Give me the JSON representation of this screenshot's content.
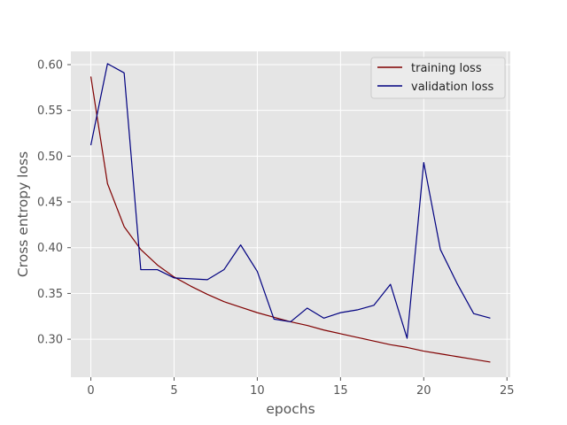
{
  "chart_data": {
    "type": "line",
    "xlabel": "epochs",
    "ylabel": "Cross entropy loss",
    "xlim": [
      -1.2,
      25.2
    ],
    "ylim": [
      0.2585,
      0.6145
    ],
    "x_ticks": [
      0,
      5,
      10,
      15,
      20,
      25
    ],
    "y_ticks": [
      0.3,
      0.35,
      0.4,
      0.45,
      0.5,
      0.55,
      0.6
    ],
    "x_tick_labels": [
      "0",
      "5",
      "10",
      "15",
      "20",
      "25"
    ],
    "y_tick_labels": [
      "0.30",
      "0.35",
      "0.40",
      "0.45",
      "0.50",
      "0.55",
      "0.60"
    ],
    "grid": true,
    "style": "ggplot",
    "background_color": "#e5e5e5",
    "grid_color": "#ffffff",
    "legend_position": "upper right",
    "x": [
      0,
      1,
      2,
      3,
      4,
      5,
      6,
      7,
      8,
      9,
      10,
      11,
      12,
      13,
      14,
      15,
      16,
      17,
      18,
      19,
      20,
      21,
      22,
      23,
      24
    ],
    "series": [
      {
        "name": "training loss",
        "color": "#800000",
        "values": [
          0.587,
          0.47,
          0.423,
          0.398,
          0.381,
          0.368,
          0.358,
          0.349,
          0.341,
          0.335,
          0.329,
          0.324,
          0.319,
          0.315,
          0.31,
          0.306,
          0.302,
          0.298,
          0.294,
          0.291,
          0.287,
          0.284,
          0.281,
          0.278,
          0.275
        ]
      },
      {
        "name": "validation loss",
        "color": "#000080",
        "values": [
          0.512,
          0.601,
          0.591,
          0.376,
          0.376,
          0.367,
          0.366,
          0.365,
          0.376,
          0.403,
          0.374,
          0.322,
          0.319,
          0.334,
          0.323,
          0.329,
          0.332,
          0.337,
          0.36,
          0.301,
          0.493,
          0.398,
          0.361,
          0.328,
          0.323
        ]
      }
    ]
  }
}
